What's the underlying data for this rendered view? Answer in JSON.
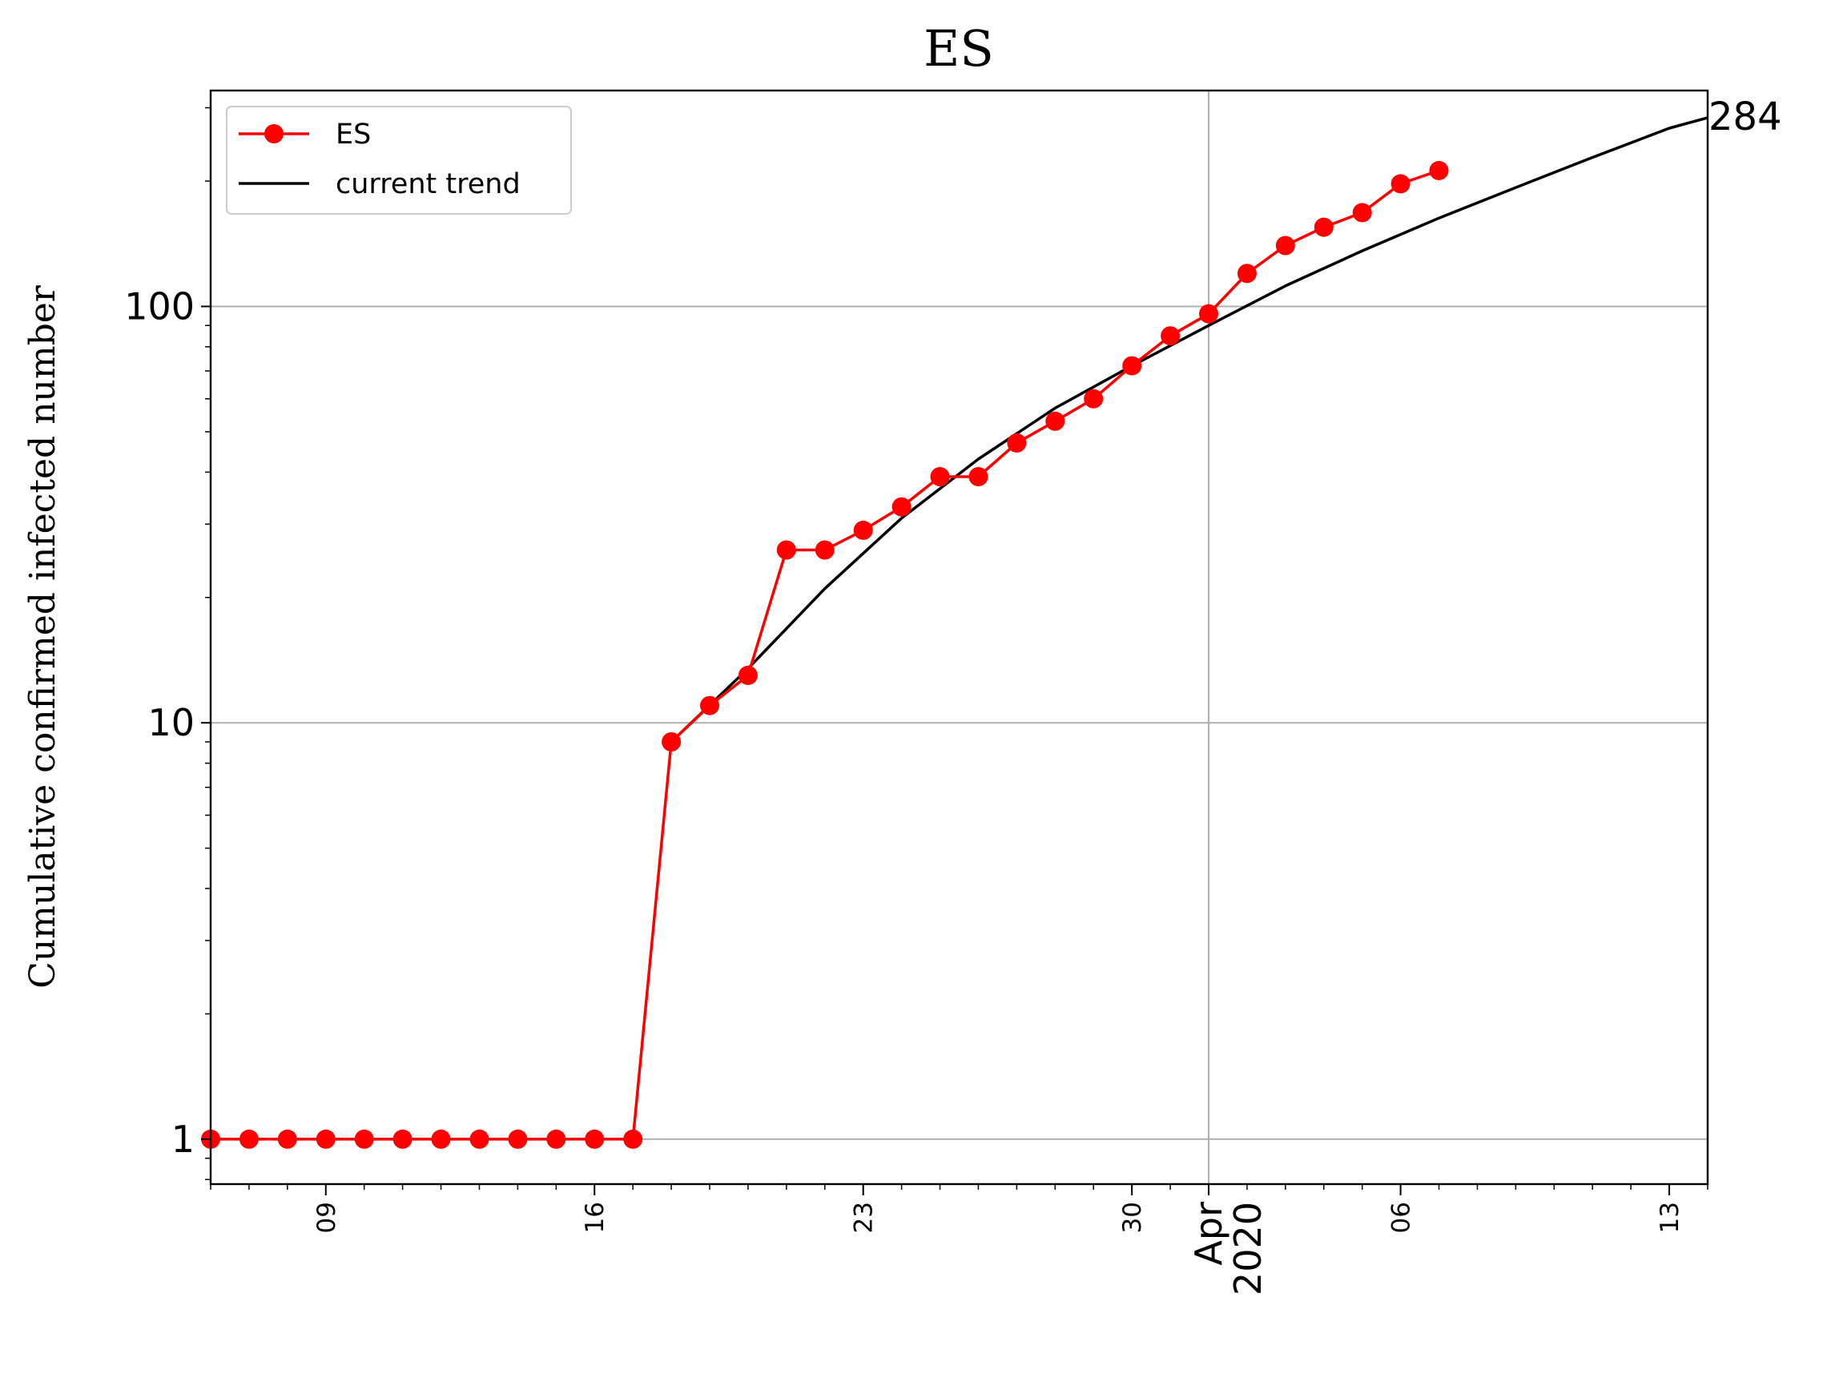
{
  "chart_data": {
    "type": "line",
    "title": "ES",
    "ylabel": "Cumulative confirmed infected number",
    "xlabel": "",
    "yscale": "log",
    "xlim": [
      "2020-03-06",
      "2020-04-14"
    ],
    "ylim": [
      0.78,
      330
    ],
    "grid": true,
    "legend_position": "top-left",
    "x_major_ticks": [
      {
        "date": "2020-03-09",
        "label": "09"
      },
      {
        "date": "2020-03-16",
        "label": "16"
      },
      {
        "date": "2020-03-23",
        "label": "23"
      },
      {
        "date": "2020-03-30",
        "label": "30"
      },
      {
        "date": "2020-04-01",
        "label": "Apr\n2020"
      },
      {
        "date": "2020-04-06",
        "label": "06"
      },
      {
        "date": "2020-04-13",
        "label": "13"
      }
    ],
    "y_ticks": [
      {
        "value": 1,
        "label": "1"
      },
      {
        "value": 10,
        "label": "10"
      },
      {
        "value": 100,
        "label": "100"
      }
    ],
    "end_annotation": "284",
    "series": [
      {
        "name": "ES",
        "color": "#ff0000",
        "marker": "circle",
        "x": [
          "2020-03-06",
          "2020-03-07",
          "2020-03-08",
          "2020-03-09",
          "2020-03-10",
          "2020-03-11",
          "2020-03-12",
          "2020-03-13",
          "2020-03-14",
          "2020-03-15",
          "2020-03-16",
          "2020-03-17",
          "2020-03-18",
          "2020-03-19",
          "2020-03-20",
          "2020-03-21",
          "2020-03-22",
          "2020-03-23",
          "2020-03-24",
          "2020-03-25",
          "2020-03-26",
          "2020-03-27",
          "2020-03-28",
          "2020-03-29",
          "2020-03-30",
          "2020-03-31",
          "2020-04-01",
          "2020-04-02",
          "2020-04-03",
          "2020-04-04",
          "2020-04-05",
          "2020-04-06",
          "2020-04-07"
        ],
        "values": [
          1,
          1,
          1,
          1,
          1,
          1,
          1,
          1,
          1,
          1,
          1,
          1,
          9,
          11,
          13,
          26,
          26,
          29,
          33,
          39,
          39,
          47,
          53,
          60,
          72,
          85,
          96,
          120,
          140,
          155,
          168,
          197,
          212
        ]
      },
      {
        "name": "current trend",
        "color": "#000000",
        "marker": "none",
        "x": [
          "2020-03-18",
          "2020-03-20",
          "2020-03-22",
          "2020-03-24",
          "2020-03-26",
          "2020-03-28",
          "2020-03-30",
          "2020-04-01",
          "2020-04-03",
          "2020-04-05",
          "2020-04-07",
          "2020-04-09",
          "2020-04-11",
          "2020-04-13",
          "2020-04-14"
        ],
        "values": [
          9,
          13.5,
          21,
          31,
          43,
          57,
          72,
          90,
          112,
          136,
          163,
          193,
          228,
          268,
          284
        ]
      }
    ]
  }
}
